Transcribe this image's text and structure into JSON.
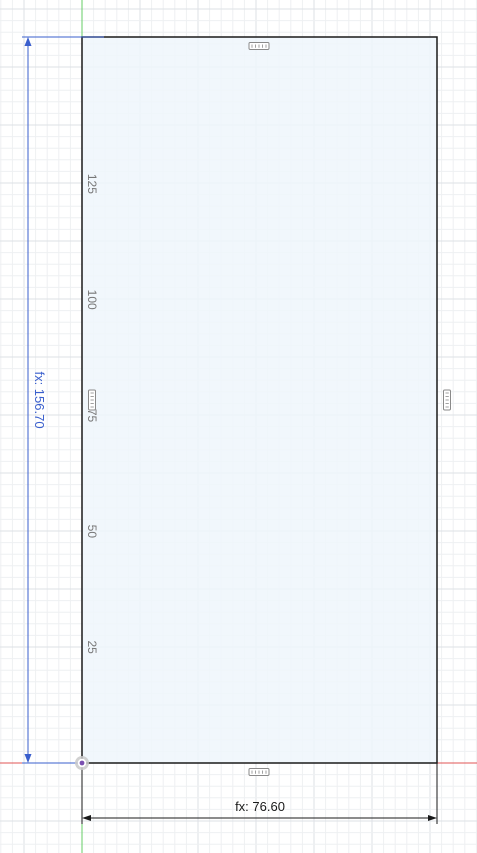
{
  "sketch": {
    "rectangle": {
      "fill": "#eef6fb",
      "stroke": "#1a1a1a"
    },
    "dimensions": {
      "height_label": "fx: 156.70",
      "height_color": "#3a5fcd",
      "width_label": "fx: 76.60",
      "width_color": "#1a1a1a"
    },
    "ruler_ticks": [
      {
        "value": 125,
        "label": "125"
      },
      {
        "value": 100,
        "label": "100"
      },
      {
        "value": 75,
        "label": "75"
      },
      {
        "value": 50,
        "label": "50"
      },
      {
        "value": 25,
        "label": "25"
      }
    ],
    "constraint_icons": [
      {
        "name": "top-edge-constraint-icon",
        "icon": "horizontal-constraint-icon"
      },
      {
        "name": "right-edge-constraint-icon",
        "icon": "vertical-constraint-icon"
      },
      {
        "name": "bottom-edge-constraint-icon",
        "icon": "horizontal-constraint-icon"
      },
      {
        "name": "left-edge-constraint-icon",
        "icon": "vertical-constraint-icon"
      }
    ],
    "colors": {
      "grid_minor": "#eef0f2",
      "grid_major": "#dde1e5",
      "axis_red": "#e05555",
      "axis_green": "#66cc66",
      "origin": "#7a4fb0"
    }
  }
}
